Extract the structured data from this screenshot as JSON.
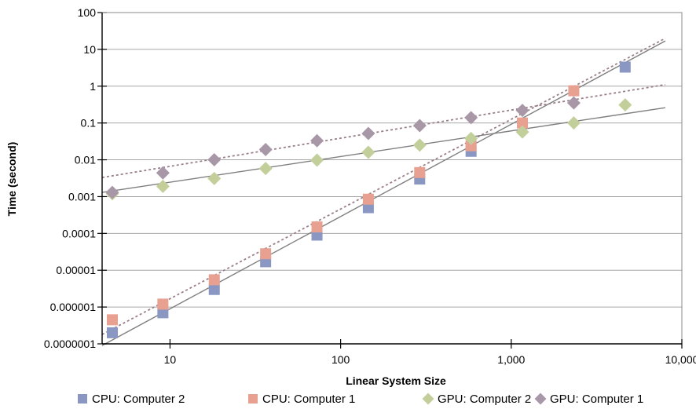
{
  "chart_data": {
    "type": "scatter",
    "x_scale": "log",
    "y_scale": "log",
    "xlim": [
      4,
      10000
    ],
    "ylim": [
      1e-07,
      100
    ],
    "xlabel": "Linear System Size",
    "ylabel": "Time (second)",
    "x_ticks": [
      {
        "value": 10,
        "label": "10"
      },
      {
        "value": 100,
        "label": "100"
      },
      {
        "value": 1000,
        "label": "1,000"
      },
      {
        "value": 10000,
        "label": "10,000"
      }
    ],
    "y_ticks": [
      {
        "value": 1e-07,
        "label": "0.0000001"
      },
      {
        "value": 1e-06,
        "label": "0.000001"
      },
      {
        "value": 1e-05,
        "label": "0.00001"
      },
      {
        "value": 0.0001,
        "label": "0.0001"
      },
      {
        "value": 0.001,
        "label": "0.001"
      },
      {
        "value": 0.01,
        "label": "0.01"
      },
      {
        "value": 0.1,
        "label": "0.1"
      },
      {
        "value": 1,
        "label": "1"
      },
      {
        "value": 10,
        "label": "10"
      },
      {
        "value": 100,
        "label": "100"
      }
    ],
    "grid": "horizontal",
    "legend_position": "bottom",
    "series": [
      {
        "name": "CPU: Computer 2",
        "marker": "square",
        "color": "#8b97c3",
        "x": [
          4,
          8,
          16,
          32,
          64,
          128,
          256,
          512,
          4096
        ],
        "y": [
          2e-07,
          7e-07,
          3e-06,
          1.7e-05,
          9e-05,
          0.0005,
          0.003,
          0.017,
          3.3
        ],
        "trendline": {
          "style": "solid",
          "x": [
            4,
            8000
          ],
          "y": [
            9e-08,
            17
          ]
        }
      },
      {
        "name": "CPU: Computer 1",
        "marker": "square",
        "color": "#e8a090",
        "x": [
          4,
          8,
          16,
          32,
          64,
          128,
          256,
          512,
          1024,
          2048
        ],
        "y": [
          4.5e-07,
          1.2e-06,
          5.5e-06,
          2.8e-05,
          0.00015,
          0.00085,
          0.0045,
          0.024,
          0.1,
          0.75
        ],
        "trendline": {
          "style": "dotted",
          "x": [
            4,
            8000
          ],
          "y": [
            1.8e-07,
            20
          ]
        }
      },
      {
        "name": "GPU: Computer 2",
        "marker": "diamond",
        "color": "#c3cf9b",
        "x": [
          4,
          8,
          16,
          32,
          64,
          128,
          256,
          512,
          1024,
          2048,
          4096
        ],
        "y": [
          0.0012,
          0.0019,
          0.0031,
          0.0058,
          0.0098,
          0.016,
          0.025,
          0.038,
          0.057,
          0.1,
          0.31
        ],
        "trendline": {
          "style": "solid",
          "x": [
            4,
            8000
          ],
          "y": [
            0.0013,
            0.26
          ]
        }
      },
      {
        "name": "GPU: Computer 1",
        "marker": "diamond",
        "color": "#a797a7",
        "x": [
          4,
          8,
          16,
          32,
          64,
          128,
          256,
          512,
          1024,
          2048
        ],
        "y": [
          0.0013,
          0.0044,
          0.01,
          0.019,
          0.033,
          0.052,
          0.085,
          0.14,
          0.22,
          0.35
        ],
        "trendline": {
          "style": "dotted",
          "x": [
            4,
            8000
          ],
          "y": [
            0.0033,
            1.1
          ]
        }
      }
    ]
  }
}
